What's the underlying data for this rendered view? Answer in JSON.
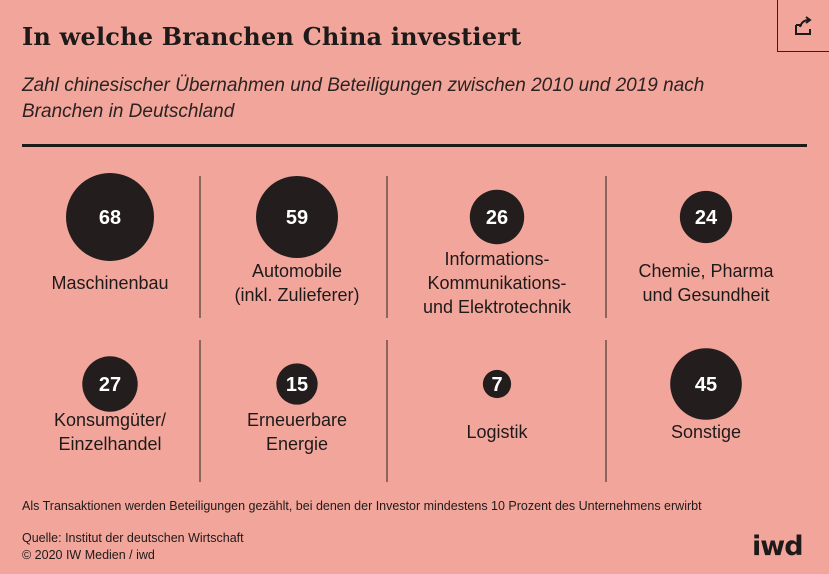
{
  "title": "In welche Branchen China investiert",
  "subtitle": "Zahl chinesischer Übernahmen und Beteiligungen zwischen 2010 und 2019 nach Branchen in Deutschland",
  "footnote": "Als Transaktionen werden Beteiligungen gezählt, bei denen der Investor mindestens 10 Prozent des Unternehmens erwirbt",
  "source": "Quelle: Institut der deutschen Wirtschaft",
  "copyright": "© 2020 IW Medien / iwd",
  "logo": "iwd",
  "icon": "external-link-icon",
  "colors": {
    "background": "#f2a69b",
    "bubble": "#231d1d",
    "bubble_text": "#ffffff",
    "text": "#1f1a1a"
  },
  "chart_data": {
    "type": "bubble",
    "categories": [
      [
        "Maschinenbau"
      ],
      [
        "Automobile",
        "(inkl. Zulieferer)"
      ],
      [
        "Informations-",
        "Kommunikations-",
        "und Elektrotechnik"
      ],
      [
        "Chemie, Pharma",
        "und Gesundheit"
      ],
      [
        "Konsumgüter/",
        "Einzelhandel"
      ],
      [
        "Erneuerbare",
        "Energie"
      ],
      [
        "Logistik"
      ],
      [
        "Sonstige"
      ]
    ],
    "values": [
      68,
      59,
      26,
      24,
      27,
      15,
      7,
      45
    ]
  }
}
